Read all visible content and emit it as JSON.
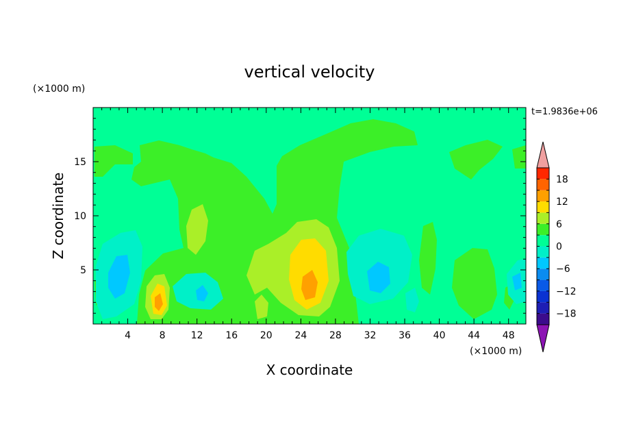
{
  "chart_data": {
    "type": "heatmap",
    "title": "vertical velocity",
    "xlabel": "X coordinate",
    "ylabel": "Z coordinate",
    "x_unit": "(×1000 m)",
    "y_unit": "(×1000 m)",
    "time_label": "t=1.9836e+06",
    "xlim": [
      0,
      50
    ],
    "ylim": [
      0,
      20
    ],
    "x_ticks": [
      4,
      8,
      12,
      16,
      20,
      24,
      28,
      32,
      36,
      40,
      44,
      48
    ],
    "y_ticks": [
      5,
      10,
      15
    ],
    "colorbar": {
      "levels": [
        -21,
        -18,
        -15,
        -12,
        -9,
        -6,
        -3,
        0,
        3,
        6,
        9,
        12,
        15,
        18,
        21
      ],
      "labels": [
        18,
        12,
        6,
        0,
        -6,
        -12,
        -18
      ],
      "colors": [
        "#3c0c8c",
        "#1e1eb4",
        "#0a32d2",
        "#0a5ae6",
        "#0a8cf0",
        "#00c8ff",
        "#00f0c8",
        "#00ff96",
        "#3cef28",
        "#aaef28",
        "#ffdc00",
        "#ffa000",
        "#ff6400",
        "#ff2800"
      ],
      "over_color": "#f0a0a0",
      "under_color": "#8c14b4"
    },
    "field_background": "#00ff96",
    "features": [
      {
        "type": "updraft",
        "x": 25,
        "z": 3.8,
        "w": 6,
        "value": 9
      },
      {
        "type": "updraft",
        "x": 7.6,
        "z": 2.2,
        "w": 3,
        "value": 12
      },
      {
        "type": "updraft",
        "x": 11.8,
        "z": 9.5,
        "w": 2,
        "value": 3
      },
      {
        "type": "downdraft",
        "x": 3,
        "z": 5,
        "w": 3,
        "value": -6
      },
      {
        "type": "downdraft",
        "x": 32.5,
        "z": 4.5,
        "w": 4,
        "value": -6
      },
      {
        "type": "downdraft",
        "x": 48.5,
        "z": 3.5,
        "w": 2,
        "value": -6
      }
    ]
  }
}
